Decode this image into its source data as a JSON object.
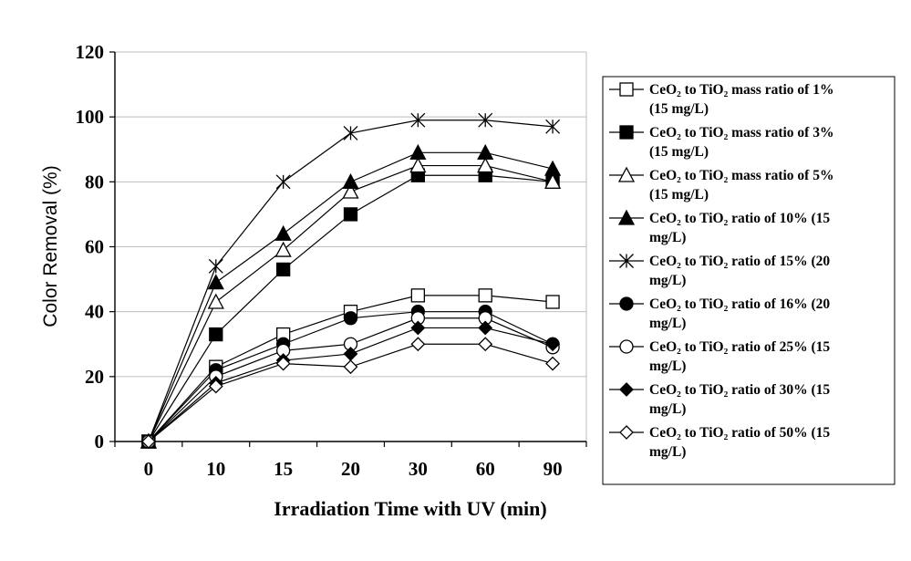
{
  "chart_data": {
    "type": "line",
    "categories": [
      "0",
      "10",
      "15",
      "20",
      "30",
      "60",
      "90"
    ],
    "xlabel": "Irradiation Time with UV (min)",
    "ylabel": "Color Removal (%)",
    "ylim": [
      0,
      120
    ],
    "yticks": [
      "0",
      "20",
      "40",
      "60",
      "80",
      "100",
      "120"
    ],
    "grid": "horizontal",
    "legend_position": "right",
    "series": [
      {
        "name": "CeO₂ to TiO₂ mass ratio of 1% (15 mg/L)",
        "marker": "square-open",
        "values": [
          0,
          23,
          33,
          40,
          45,
          45,
          43
        ]
      },
      {
        "name": "CeO₂ to TiO₂ mass ratio of 3% (15 mg/L)",
        "marker": "square-filled",
        "values": [
          0,
          33,
          53,
          70,
          82,
          82,
          80
        ]
      },
      {
        "name": "CeO₂ to TiO₂ mass ratio of 5% (15 mg/L)",
        "marker": "triangle-open",
        "values": [
          0,
          43,
          59,
          77,
          85,
          85,
          80
        ]
      },
      {
        "name": "CeO₂ to TiO₂ ratio of 10% (15 mg/L)",
        "marker": "triangle-filled",
        "values": [
          0,
          49,
          64,
          80,
          89,
          89,
          84
        ]
      },
      {
        "name": "CeO₂ to TiO₂ ratio of 15% (20 mg/L)",
        "marker": "star",
        "values": [
          0,
          54,
          80,
          95,
          99,
          99,
          97
        ]
      },
      {
        "name": "CeO₂ to TiO₂ ratio of 16% (20 mg/L)",
        "marker": "circle-filled",
        "values": [
          0,
          22,
          30,
          38,
          40,
          40,
          30
        ]
      },
      {
        "name": "CeO₂ to TiO₂ ratio of 25% (15 mg/L)",
        "marker": "circle-open",
        "values": [
          0,
          20,
          28,
          30,
          38,
          38,
          29
        ]
      },
      {
        "name": "CeO₂ to TiO₂ ratio of 30% (15 mg/L)",
        "marker": "diamond-filled",
        "values": [
          0,
          18,
          25,
          27,
          35,
          35,
          30
        ]
      },
      {
        "name": "CeO₂ to TiO₂ ratio of 50% (15 mg/L)",
        "marker": "diamond-open",
        "values": [
          0,
          17,
          24,
          23,
          30,
          30,
          24
        ]
      }
    ],
    "legend_lines": [
      [
        "CeO₂ to TiO₂ mass ratio of 1%",
        "(15 mg/L)"
      ],
      [
        "CeO₂ to TiO₂ mass ratio of 3%",
        "(15 mg/L)"
      ],
      [
        "CeO₂ to TiO₂ mass ratio of 5%",
        "(15 mg/L)"
      ],
      [
        "CeO₂ to TiO₂ ratio of 10% (15",
        "mg/L)"
      ],
      [
        "CeO₂ to TiO₂ ratio of 15% (20",
        "mg/L)"
      ],
      [
        "CeO₂ to TiO₂ ratio of 16% (20",
        "mg/L)"
      ],
      [
        "CeO₂ to TiO₂ ratio of 25% (15",
        "mg/L)"
      ],
      [
        "CeO₂ to TiO₂ ratio of 30% (15",
        "mg/L)"
      ],
      [
        "CeO₂ to TiO₂ ratio of 50% (15",
        "mg/L)"
      ]
    ]
  }
}
